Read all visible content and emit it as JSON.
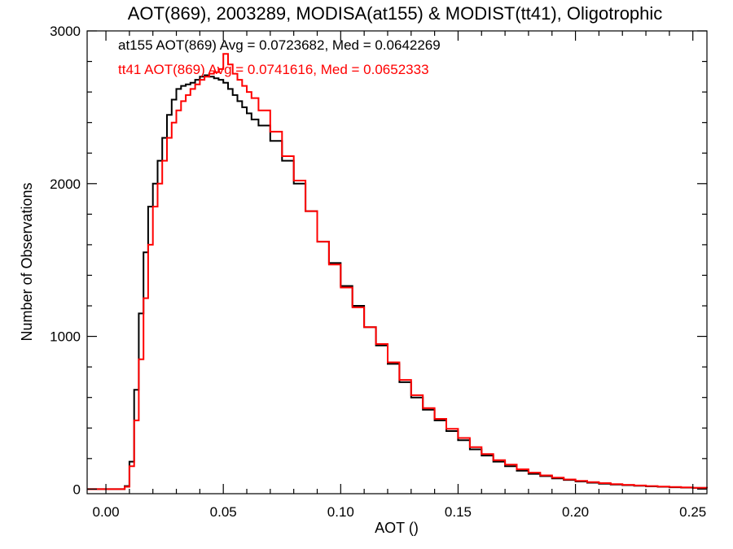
{
  "chart_data": {
    "type": "line",
    "subtype": "step-histogram",
    "title": "AOT(869), 2003289, MODISA(at155) & MODIST(tt41), Oligotrophic",
    "xlabel": "AOT ()",
    "ylabel": "Number of Observations",
    "xlim": [
      -0.008,
      0.256
    ],
    "ylim": [
      -30,
      3000
    ],
    "grid": false,
    "x_ticks": [
      0.0,
      0.05,
      0.1,
      0.15,
      0.2,
      0.25
    ],
    "x_tick_labels": [
      "0.00",
      "0.05",
      "0.10",
      "0.15",
      "0.20",
      "0.25"
    ],
    "y_ticks": [
      0,
      1000,
      2000,
      3000
    ],
    "y_tick_labels": [
      "0",
      "1000",
      "2000",
      "3000"
    ],
    "annotations": [
      {
        "text": "at155 AOT(869) Avg = 0.0723682, Med = 0.0642269",
        "color": "#000000"
      },
      {
        "text": "tt41 AOT(869) Avg = 0.0741616, Med = 0.0652333",
        "color": "#ff0000"
      }
    ],
    "series": [
      {
        "color": "#000000",
        "x": [
          -0.008,
          0.005,
          0.008,
          0.01,
          0.012,
          0.014,
          0.016,
          0.018,
          0.02,
          0.022,
          0.024,
          0.026,
          0.028,
          0.03,
          0.032,
          0.034,
          0.036,
          0.038,
          0.04,
          0.042,
          0.044,
          0.046,
          0.048,
          0.05,
          0.052,
          0.054,
          0.056,
          0.058,
          0.06,
          0.062,
          0.065,
          0.07,
          0.075,
          0.08,
          0.085,
          0.09,
          0.095,
          0.1,
          0.105,
          0.11,
          0.115,
          0.12,
          0.125,
          0.13,
          0.135,
          0.14,
          0.145,
          0.15,
          0.155,
          0.16,
          0.165,
          0.17,
          0.175,
          0.18,
          0.185,
          0.19,
          0.195,
          0.2,
          0.205,
          0.21,
          0.215,
          0.22,
          0.225,
          0.23,
          0.235,
          0.24,
          0.245,
          0.25,
          0.256
        ],
        "values": [
          0,
          0,
          20,
          180,
          650,
          1150,
          1550,
          1850,
          2000,
          2150,
          2300,
          2450,
          2550,
          2620,
          2640,
          2650,
          2660,
          2680,
          2700,
          2710,
          2700,
          2690,
          2680,
          2660,
          2620,
          2580,
          2540,
          2500,
          2460,
          2420,
          2380,
          2280,
          2150,
          2000,
          1820,
          1620,
          1480,
          1330,
          1200,
          1060,
          940,
          820,
          700,
          600,
          520,
          450,
          380,
          320,
          260,
          220,
          180,
          150,
          120,
          100,
          85,
          70,
          60,
          50,
          42,
          35,
          30,
          26,
          22,
          18,
          15,
          12,
          10,
          8,
          6
        ]
      },
      {
        "color": "#ff0000",
        "x": [
          -0.008,
          0.005,
          0.008,
          0.01,
          0.012,
          0.014,
          0.016,
          0.018,
          0.02,
          0.022,
          0.024,
          0.026,
          0.028,
          0.03,
          0.032,
          0.034,
          0.036,
          0.038,
          0.04,
          0.042,
          0.044,
          0.046,
          0.048,
          0.05,
          0.052,
          0.054,
          0.056,
          0.058,
          0.06,
          0.062,
          0.065,
          0.07,
          0.075,
          0.08,
          0.085,
          0.09,
          0.095,
          0.1,
          0.105,
          0.11,
          0.115,
          0.12,
          0.125,
          0.13,
          0.135,
          0.14,
          0.145,
          0.15,
          0.155,
          0.16,
          0.165,
          0.17,
          0.175,
          0.18,
          0.185,
          0.19,
          0.195,
          0.2,
          0.205,
          0.21,
          0.215,
          0.22,
          0.225,
          0.23,
          0.235,
          0.24,
          0.245,
          0.25,
          0.256
        ],
        "values": [
          0,
          0,
          15,
          150,
          450,
          850,
          1250,
          1600,
          1850,
          2000,
          2150,
          2300,
          2400,
          2480,
          2540,
          2580,
          2620,
          2650,
          2680,
          2700,
          2720,
          2730,
          2750,
          2850,
          2780,
          2720,
          2680,
          2640,
          2600,
          2560,
          2480,
          2340,
          2180,
          2020,
          1820,
          1620,
          1470,
          1320,
          1190,
          1060,
          950,
          830,
          715,
          615,
          530,
          460,
          395,
          335,
          275,
          230,
          190,
          160,
          130,
          108,
          90,
          75,
          63,
          54,
          46,
          39,
          33,
          28,
          24,
          20,
          17,
          14,
          11,
          9,
          7
        ]
      }
    ]
  }
}
